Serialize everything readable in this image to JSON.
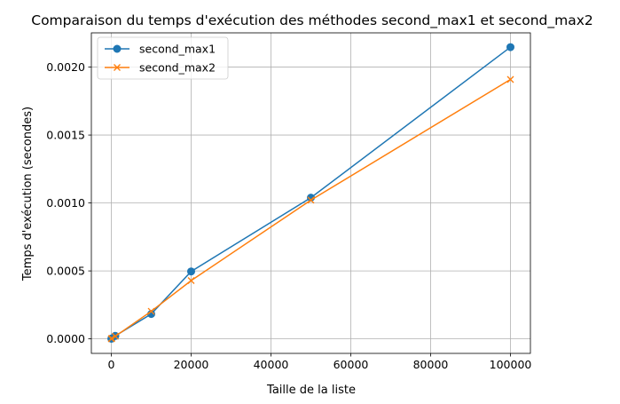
{
  "chart_data": {
    "type": "line",
    "title": "Comparaison du temps d'exécution des méthodes second_max1 et second_max2",
    "xlabel": "Taille de la liste",
    "ylabel": "Temps d'exécution (secondes)",
    "xlim": [
      -5000,
      105000
    ],
    "ylim": [
      -0.000107,
      0.002252
    ],
    "xticks": [
      0,
      20000,
      40000,
      60000,
      80000,
      100000
    ],
    "xtick_labels": [
      "0",
      "20000",
      "40000",
      "60000",
      "80000",
      "100000"
    ],
    "yticks": [
      0.0,
      0.0005,
      0.001,
      0.0015,
      0.002
    ],
    "ytick_labels": [
      "0.0000",
      "0.0005",
      "0.0010",
      "0.0015",
      "0.0020"
    ],
    "grid": true,
    "legend_position": "upper-left",
    "x": [
      10,
      100,
      1000,
      10000,
      20000,
      50000,
      100000
    ],
    "series": [
      {
        "name": "second_max1",
        "color": "#1f77b4",
        "marker": "circle",
        "values": [
          1e-06,
          3e-06,
          2.2e-05,
          0.000183,
          0.000496,
          0.001039,
          0.002147
        ]
      },
      {
        "name": "second_max2",
        "color": "#ff7f0e",
        "marker": "x",
        "values": [
          1e-06,
          3e-06,
          1.9e-05,
          0.000203,
          0.000429,
          0.001021,
          0.001909
        ]
      }
    ]
  }
}
